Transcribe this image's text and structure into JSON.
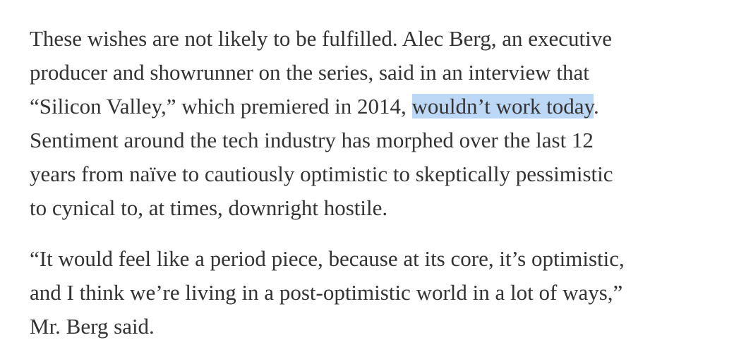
{
  "paragraphs": [
    {
      "lines": [
        "These wishes are not likely to be fulfilled. Alec Berg, an executive",
        "producer and showrunner on the series, said in an interview that",
        {
          "before": "“Silicon Valley,” which premiered in 2014, ",
          "highlighted": "wouldn’t work today",
          "after": "."
        },
        "Sentiment around the tech industry has morphed over the last 12",
        "years from naïve to cautiously optimistic to skeptically pessimistic",
        "to cynical to, at times, downright hostile."
      ]
    },
    {
      "lines": [
        "“It would feel like a period piece, because at its core, it’s optimistic,",
        "and I think we’re living in a post-optimistic world in a lot of ways,”",
        "Mr. Berg said."
      ]
    }
  ]
}
